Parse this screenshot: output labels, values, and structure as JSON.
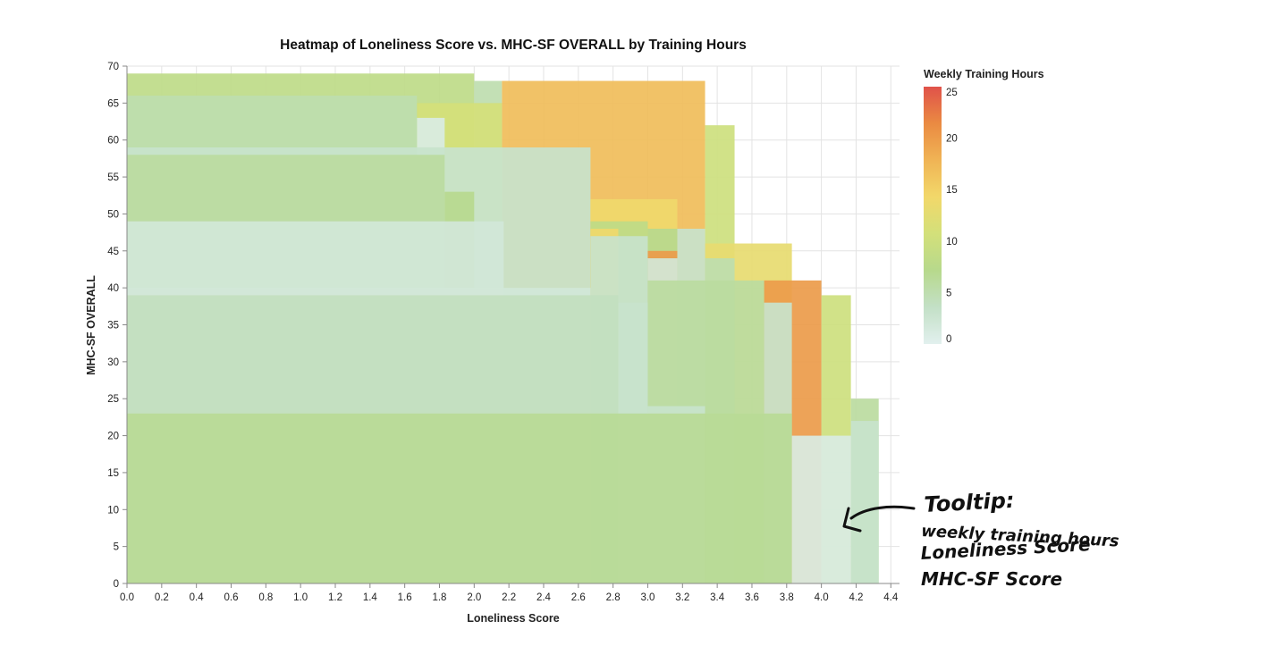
{
  "chart_data": {
    "type": "heatmap",
    "title": "Heatmap of Loneliness Score vs. MHC-SF OVERALL by Training Hours",
    "xlabel": "Loneliness Score",
    "ylabel": "MHC-SF OVERALL",
    "xlim": [
      0,
      4.45
    ],
    "ylim": [
      0,
      70
    ],
    "x_ticks": [
      "0.0",
      "0.2",
      "0.4",
      "0.6",
      "0.8",
      "1.0",
      "1.2",
      "1.4",
      "1.6",
      "1.8",
      "2.0",
      "2.2",
      "2.4",
      "2.6",
      "2.8",
      "3.0",
      "3.2",
      "3.4",
      "3.6",
      "3.8",
      "4.0",
      "4.2",
      "4.4"
    ],
    "y_ticks": [
      "0",
      "5",
      "10",
      "15",
      "20",
      "25",
      "30",
      "35",
      "40",
      "45",
      "50",
      "55",
      "60",
      "65",
      "70"
    ],
    "grid": true,
    "legend": {
      "title": "Weekly Training Hours",
      "placement": "right",
      "range": [
        0,
        25
      ],
      "ticks": [
        "0",
        "5",
        "10",
        "15",
        "20",
        "25"
      ],
      "colors": [
        "#e2f0ee",
        "#c3e0c6",
        "#b7d98c",
        "#d3e07a",
        "#f2d86a",
        "#f0b455",
        "#ea8a42",
        "#e0524a"
      ]
    },
    "cells": [
      {
        "x": [
          0,
          2.0
        ],
        "y": [
          0,
          69
        ],
        "hours": 8
      },
      {
        "x": [
          2.0,
          2.16
        ],
        "y": [
          0,
          68
        ],
        "hours": 5
      },
      {
        "x": [
          2.16,
          3.33
        ],
        "y": [
          0,
          68
        ],
        "hours": 17
      },
      {
        "x": [
          1.67,
          2.16
        ],
        "y": [
          0,
          65
        ],
        "hours": 11
      },
      {
        "x": [
          1.67,
          1.83
        ],
        "y": [
          0,
          63
        ],
        "hours": 1
      },
      {
        "x": [
          3.33,
          3.5
        ],
        "y": [
          0,
          62
        ],
        "hours": 10
      },
      {
        "x": [
          0,
          1.67
        ],
        "y": [
          0,
          66
        ],
        "hours": 5
      },
      {
        "x": [
          0,
          2.67
        ],
        "y": [
          0,
          59
        ],
        "hours": 3
      },
      {
        "x": [
          0,
          1.83
        ],
        "y": [
          0,
          58
        ],
        "hours": 6
      },
      {
        "x": [
          1.83,
          2.0
        ],
        "y": [
          0,
          53
        ],
        "hours": 7
      },
      {
        "x": [
          2.67,
          3.17
        ],
        "y": [
          0,
          52
        ],
        "hours": 14
      },
      {
        "x": [
          3.33,
          3.83
        ],
        "y": [
          0,
          46
        ],
        "hours": 13
      },
      {
        "x": [
          0,
          2.17
        ],
        "y": [
          0,
          49
        ],
        "hours": 2
      },
      {
        "x": [
          2.67,
          3.0
        ],
        "y": [
          0,
          49
        ],
        "hours": 8
      },
      {
        "x": [
          2.67,
          2.83
        ],
        "y": [
          0,
          48
        ],
        "hours": 14
      },
      {
        "x": [
          3.0,
          3.17
        ],
        "y": [
          0,
          48
        ],
        "hours": 7
      },
      {
        "x": [
          2.67,
          3.0
        ],
        "y": [
          0,
          47
        ],
        "hours": 3
      },
      {
        "x": [
          3.17,
          3.33
        ],
        "y": [
          0,
          48
        ],
        "hours": 3
      },
      {
        "x": [
          3.0,
          3.17
        ],
        "y": [
          0,
          45
        ],
        "hours": 20
      },
      {
        "x": [
          3.0,
          3.17
        ],
        "y": [
          0,
          44
        ],
        "hours": 2
      },
      {
        "x": [
          3.33,
          3.5
        ],
        "y": [
          0,
          44
        ],
        "hours": 5
      },
      {
        "x": [
          0,
          2.67
        ],
        "y": [
          0,
          40
        ],
        "hours": 2
      },
      {
        "x": [
          3.67,
          4.0
        ],
        "y": [
          0,
          41
        ],
        "hours": 20
      },
      {
        "x": [
          3.0,
          3.67
        ],
        "y": [
          0,
          41
        ],
        "hours": 6
      },
      {
        "x": [
          4.0,
          4.17
        ],
        "y": [
          0,
          39
        ],
        "hours": 10
      },
      {
        "x": [
          0,
          2.83
        ],
        "y": [
          0,
          39
        ],
        "hours": 4
      },
      {
        "x": [
          3.67,
          3.83
        ],
        "y": [
          0,
          38
        ],
        "hours": 3
      },
      {
        "x": [
          2.83,
          3.0
        ],
        "y": [
          0,
          38
        ],
        "hours": 3
      },
      {
        "x": [
          4.17,
          4.33
        ],
        "y": [
          0,
          25
        ],
        "hours": 6
      },
      {
        "x": [
          3.0,
          3.33
        ],
        "y": [
          0,
          24
        ],
        "hours": 3
      },
      {
        "x": [
          2.83,
          3.0
        ],
        "y": [
          0,
          23
        ],
        "hours": 3
      },
      {
        "x": [
          0,
          3.83
        ],
        "y": [
          0,
          23
        ],
        "hours": 6.5
      },
      {
        "x": [
          4.17,
          4.33
        ],
        "y": [
          0,
          22
        ],
        "hours": 3
      },
      {
        "x": [
          3.83,
          4.17
        ],
        "y": [
          0,
          20
        ],
        "hours": 1
      }
    ]
  },
  "annotation": {
    "lines": [
      "Tooltip:",
      "weekly training hours",
      "Loneliness Score",
      "MHC-SF Score"
    ]
  }
}
